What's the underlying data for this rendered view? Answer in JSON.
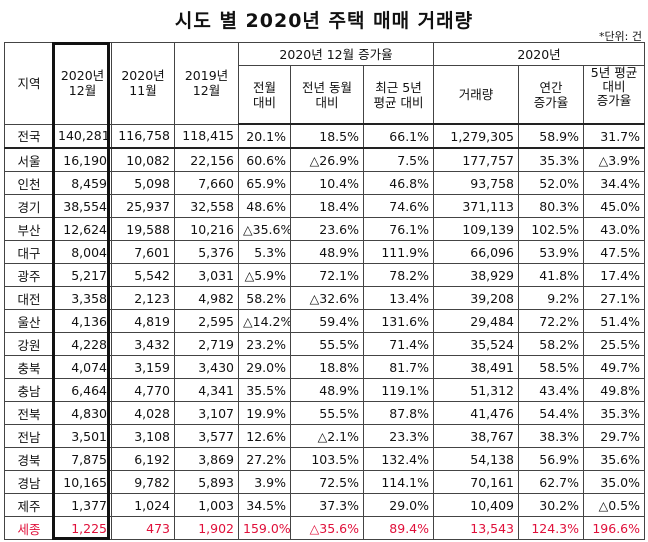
{
  "title": "시도 별 2020년 주택 매매 거래량",
  "unit": "*단위: 건",
  "header": {
    "region": "지역",
    "col_2020_12": [
      "2020년",
      "12월"
    ],
    "col_2020_11": [
      "2020년",
      "11월"
    ],
    "col_2019_12": [
      "2019년",
      "12월"
    ],
    "group_dec_rate": "2020년 12월 증가율",
    "mom": [
      "전월",
      "대비"
    ],
    "yoy": [
      "전년 동월",
      "대비"
    ],
    "avg5": [
      "최근 5년",
      "평균 대비"
    ],
    "group_2020": "2020년",
    "volume": "거래량",
    "annual_rate": [
      "연간",
      "증가율"
    ],
    "avg5_rate": [
      "5년 평균",
      "대비",
      "증가율"
    ]
  },
  "rows": [
    [
      "전국",
      "140,281",
      "116,758",
      "118,415",
      "20.1%",
      "18.5%",
      "66.1%",
      "1,279,305",
      "58.9%",
      "31.7%"
    ],
    [
      "서울",
      "16,190",
      "10,082",
      "22,156",
      "60.6%",
      "△26.9%",
      "7.5%",
      "177,757",
      "35.3%",
      "△3.9%"
    ],
    [
      "인천",
      "8,459",
      "5,098",
      "7,660",
      "65.9%",
      "10.4%",
      "46.8%",
      "93,758",
      "52.0%",
      "34.4%"
    ],
    [
      "경기",
      "38,554",
      "25,937",
      "32,558",
      "48.6%",
      "18.4%",
      "74.6%",
      "371,113",
      "80.3%",
      "45.0%"
    ],
    [
      "부산",
      "12,624",
      "19,588",
      "10,216",
      "△35.6%",
      "23.6%",
      "76.1%",
      "109,139",
      "102.5%",
      "43.0%"
    ],
    [
      "대구",
      "8,004",
      "7,601",
      "5,376",
      "5.3%",
      "48.9%",
      "111.9%",
      "66,096",
      "53.9%",
      "47.5%"
    ],
    [
      "광주",
      "5,217",
      "5,542",
      "3,031",
      "△5.9%",
      "72.1%",
      "78.2%",
      "38,929",
      "41.8%",
      "17.4%"
    ],
    [
      "대전",
      "3,358",
      "2,123",
      "4,982",
      "58.2%",
      "△32.6%",
      "13.4%",
      "39,208",
      "9.2%",
      "27.1%"
    ],
    [
      "울산",
      "4,136",
      "4,819",
      "2,595",
      "△14.2%",
      "59.4%",
      "131.6%",
      "29,484",
      "72.2%",
      "51.4%"
    ],
    [
      "강원",
      "4,228",
      "3,432",
      "2,719",
      "23.2%",
      "55.5%",
      "71.4%",
      "35,524",
      "58.2%",
      "25.5%"
    ],
    [
      "충북",
      "4,074",
      "3,159",
      "3,430",
      "29.0%",
      "18.8%",
      "81.7%",
      "38,491",
      "58.5%",
      "49.7%"
    ],
    [
      "충남",
      "6,464",
      "4,770",
      "4,341",
      "35.5%",
      "48.9%",
      "119.1%",
      "51,312",
      "43.4%",
      "49.8%"
    ],
    [
      "전북",
      "4,830",
      "4,028",
      "3,107",
      "19.9%",
      "55.5%",
      "87.8%",
      "41,476",
      "54.4%",
      "35.3%"
    ],
    [
      "전남",
      "3,501",
      "3,108",
      "3,577",
      "12.6%",
      "△2.1%",
      "23.3%",
      "38,767",
      "38.3%",
      "29.7%"
    ],
    [
      "경북",
      "7,875",
      "6,192",
      "3,869",
      "27.2%",
      "103.5%",
      "132.4%",
      "54,138",
      "56.9%",
      "35.6%"
    ],
    [
      "경남",
      "10,165",
      "9,782",
      "5,893",
      "3.9%",
      "72.5%",
      "114.1%",
      "70,161",
      "62.7%",
      "35.0%"
    ],
    [
      "제주",
      "1,377",
      "1,024",
      "1,003",
      "34.5%",
      "37.3%",
      "29.0%",
      "10,409",
      "30.2%",
      "△0.5%"
    ],
    [
      "세종",
      "1,225",
      "473",
      "1,902",
      "159.0%",
      "△35.6%",
      "89.4%",
      "13,543",
      "124.3%",
      "196.6%"
    ]
  ],
  "highlight_row_color": "#e0103a",
  "highlight_row_index": 17
}
